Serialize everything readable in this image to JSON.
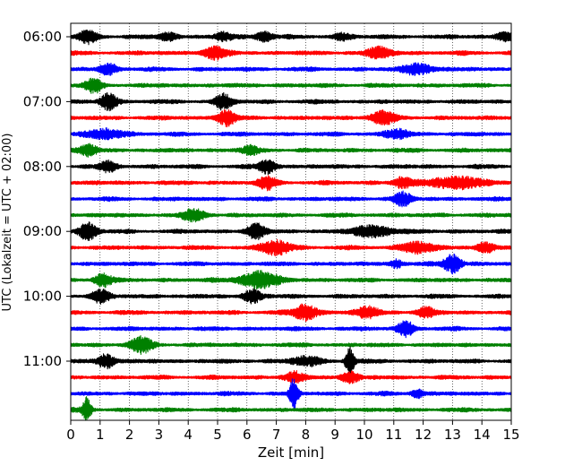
{
  "chart_data": {
    "type": "line",
    "title": "",
    "xlabel": "Zeit  [min]",
    "ylabel": "UTC (Lokalzeit = UTC + 02:00)",
    "xlim": [
      0,
      15
    ],
    "xticks": [
      0,
      1,
      2,
      3,
      4,
      5,
      6,
      7,
      8,
      9,
      10,
      11,
      12,
      13,
      14,
      15
    ],
    "ytick_labels": [
      "06:00",
      "07:00",
      "08:00",
      "09:00",
      "10:00",
      "11:00"
    ],
    "trace_interval_min": 15,
    "trace_count": 24,
    "trace_colors": [
      "#000000",
      "#ff0000",
      "#0000ff",
      "#008000"
    ],
    "grid": "vertical dotted lines at each minute",
    "legend": "none",
    "bursts": [
      [
        [
          0.6,
          0.6,
          0.3
        ],
        [
          3.3,
          0.35,
          0.3
        ],
        [
          5.2,
          0.35,
          0.3
        ],
        [
          6.6,
          0.45,
          0.3
        ],
        [
          9.3,
          0.3,
          0.3
        ],
        [
          14.8,
          0.4,
          0.3
        ]
      ],
      [
        [
          4.9,
          0.55,
          0.4
        ],
        [
          10.5,
          0.5,
          0.4
        ]
      ],
      [
        [
          1.3,
          0.5,
          0.3
        ],
        [
          11.8,
          0.5,
          0.5
        ]
      ],
      [
        [
          0.8,
          0.6,
          0.3
        ]
      ],
      [
        [
          1.3,
          0.7,
          0.3
        ],
        [
          5.2,
          0.65,
          0.3
        ]
      ],
      [
        [
          5.3,
          0.7,
          0.3
        ],
        [
          10.6,
          0.6,
          0.4
        ]
      ],
      [
        [
          1.2,
          0.45,
          0.6
        ],
        [
          11.1,
          0.4,
          0.4
        ]
      ],
      [
        [
          0.6,
          0.5,
          0.3
        ],
        [
          6.1,
          0.35,
          0.3
        ]
      ],
      [
        [
          1.3,
          0.45,
          0.3
        ],
        [
          6.7,
          0.6,
          0.3
        ]
      ],
      [
        [
          6.7,
          0.6,
          0.3
        ],
        [
          11.3,
          0.5,
          0.3
        ],
        [
          13.1,
          0.55,
          0.9
        ]
      ],
      [
        [
          11.3,
          0.6,
          0.3
        ]
      ],
      [
        [
          4.2,
          0.5,
          0.4
        ]
      ],
      [
        [
          0.6,
          0.8,
          0.3
        ],
        [
          6.3,
          0.7,
          0.3
        ],
        [
          10.3,
          0.5,
          0.7
        ]
      ],
      [
        [
          7.0,
          0.65,
          0.5
        ],
        [
          11.8,
          0.45,
          0.6
        ],
        [
          14.1,
          0.45,
          0.3
        ]
      ],
      [
        [
          13.0,
          0.85,
          0.3
        ],
        [
          11.1,
          0.4,
          0.2
        ]
      ],
      [
        [
          1.1,
          0.6,
          0.3
        ],
        [
          6.4,
          0.75,
          0.7
        ]
      ],
      [
        [
          1.0,
          0.6,
          0.3
        ],
        [
          6.2,
          0.6,
          0.3
        ]
      ],
      [
        [
          8.0,
          0.75,
          0.4
        ],
        [
          10.1,
          0.5,
          0.4
        ],
        [
          12.1,
          0.45,
          0.3
        ]
      ],
      [
        [
          11.4,
          0.65,
          0.3
        ]
      ],
      [
        [
          2.4,
          0.65,
          0.4
        ]
      ],
      [
        [
          1.2,
          0.65,
          0.3
        ],
        [
          8.0,
          0.4,
          0.5
        ],
        [
          9.5,
          1.35,
          0.15
        ]
      ],
      [
        [
          7.6,
          0.5,
          0.3
        ],
        [
          9.5,
          0.5,
          0.3
        ]
      ],
      [
        [
          7.6,
          1.4,
          0.15
        ],
        [
          11.8,
          0.4,
          0.2
        ]
      ],
      [
        [
          0.55,
          1.1,
          0.15
        ]
      ]
    ]
  }
}
